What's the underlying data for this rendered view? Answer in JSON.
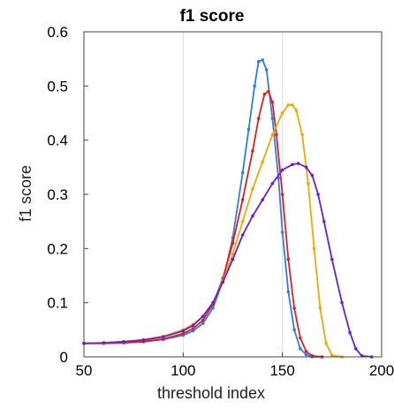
{
  "chart_data": {
    "type": "line",
    "title": "f1 score",
    "xlabel": "threshold index",
    "ylabel": "f1 score",
    "xlim": [
      50,
      200
    ],
    "ylim": [
      0,
      0.6
    ],
    "x_ticks": [
      50,
      100,
      150,
      200
    ],
    "y_ticks": [
      0,
      0.1,
      0.2,
      0.3,
      0.4,
      0.5,
      0.6
    ],
    "x_tick_labels": [
      "50",
      "100",
      "150",
      "200"
    ],
    "y_tick_labels": [
      "0",
      "0.1",
      "0.2",
      "0.3",
      "0.4",
      "0.5",
      "0.6"
    ],
    "grid": true,
    "legend": false,
    "marker": "dot",
    "series": [
      {
        "color": "#2e7de9",
        "x": [
          50,
          60,
          70,
          80,
          90,
          100,
          105,
          110,
          115,
          120,
          125,
          130,
          133,
          136,
          138,
          140,
          142,
          145,
          148,
          150,
          153,
          156,
          159,
          162,
          165,
          170
        ],
        "y": [
          0.025,
          0.025,
          0.026,
          0.028,
          0.032,
          0.04,
          0.048,
          0.062,
          0.09,
          0.14,
          0.22,
          0.34,
          0.42,
          0.5,
          0.545,
          0.548,
          0.53,
          0.44,
          0.33,
          0.23,
          0.12,
          0.05,
          0.015,
          0.004,
          0.0,
          0.0
        ]
      },
      {
        "color": "#e02020",
        "x": [
          50,
          60,
          70,
          80,
          90,
          100,
          105,
          110,
          115,
          120,
          125,
          130,
          135,
          138,
          141,
          143,
          145,
          147,
          150,
          153,
          156,
          159,
          162,
          165,
          170
        ],
        "y": [
          0.025,
          0.025,
          0.026,
          0.028,
          0.033,
          0.043,
          0.052,
          0.068,
          0.097,
          0.145,
          0.21,
          0.29,
          0.38,
          0.44,
          0.485,
          0.49,
          0.47,
          0.41,
          0.3,
          0.18,
          0.09,
          0.035,
          0.01,
          0.002,
          0.0
        ]
      },
      {
        "color": "#f0a800",
        "x": [
          50,
          60,
          70,
          80,
          90,
          100,
          105,
          110,
          115,
          120,
          125,
          130,
          135,
          140,
          145,
          150,
          153,
          155,
          157,
          160,
          163,
          166,
          169,
          172,
          175,
          180
        ],
        "y": [
          0.025,
          0.026,
          0.028,
          0.032,
          0.038,
          0.05,
          0.06,
          0.075,
          0.1,
          0.14,
          0.19,
          0.25,
          0.31,
          0.36,
          0.41,
          0.45,
          0.465,
          0.465,
          0.455,
          0.41,
          0.32,
          0.2,
          0.09,
          0.025,
          0.003,
          0.0
        ]
      },
      {
        "color": "#6a1fd1",
        "x": [
          50,
          60,
          70,
          80,
          90,
          100,
          105,
          110,
          115,
          120,
          125,
          130,
          135,
          140,
          145,
          150,
          155,
          158,
          162,
          165,
          168,
          171,
          175,
          180,
          184,
          187,
          190,
          195
        ],
        "y": [
          0.025,
          0.026,
          0.028,
          0.031,
          0.037,
          0.048,
          0.058,
          0.075,
          0.1,
          0.138,
          0.18,
          0.225,
          0.26,
          0.29,
          0.32,
          0.345,
          0.355,
          0.357,
          0.35,
          0.335,
          0.3,
          0.25,
          0.18,
          0.1,
          0.045,
          0.015,
          0.002,
          0.0
        ]
      }
    ]
  }
}
